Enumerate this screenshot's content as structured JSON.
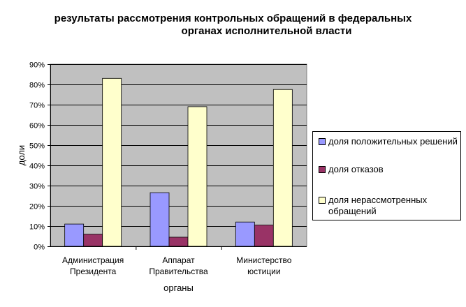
{
  "chart_data": {
    "type": "bar",
    "title_line1": "результаты рассмотрения контрольных обращений в федеральных",
    "title_line2": "органах исполнительной власти",
    "xlabel": "органы",
    "ylabel": "доли",
    "ylim": [
      0,
      0.9
    ],
    "yticks": [
      "0%",
      "10%",
      "20%",
      "30%",
      "40%",
      "50%",
      "60%",
      "70%",
      "80%",
      "90%"
    ],
    "categories": [
      [
        "Администрация",
        "Президента"
      ],
      [
        "Аппарат",
        "Правительства"
      ],
      [
        "Министерство",
        "юстиции"
      ]
    ],
    "series": [
      {
        "name": "доля положительных решений",
        "color": "#9999ff",
        "values": [
          0.11,
          0.265,
          0.12
        ]
      },
      {
        "name": "доля отказов",
        "color": "#993366",
        "values": [
          0.06,
          0.045,
          0.105
        ]
      },
      {
        "name": "доля нерассмотренных обращений",
        "color": "#ffffcc",
        "values": [
          0.83,
          0.69,
          0.775
        ]
      }
    ],
    "plot_background": "#c0c0c0",
    "grid": true,
    "legend_position": "right"
  }
}
